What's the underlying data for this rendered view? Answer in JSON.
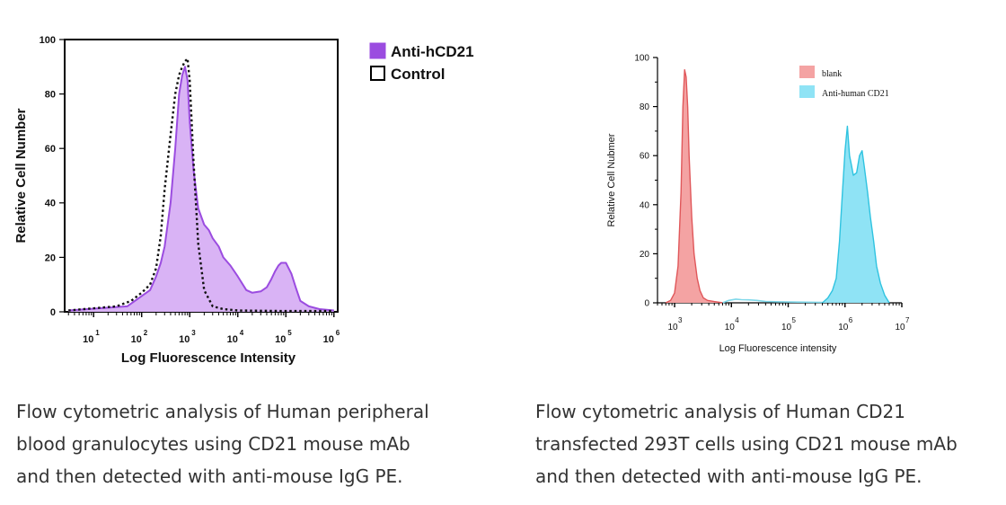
{
  "chart_data": [
    {
      "type": "area",
      "xscale": "log",
      "xlim": [
        2.5,
        1200000
      ],
      "ylim": [
        0,
        100
      ],
      "xlabel": "Log Fluorescence Intensity",
      "ylabel": "Relative Cell Number",
      "x_ticks": [
        {
          "base": "10",
          "exp": "1"
        },
        {
          "base": "10",
          "exp": "2"
        },
        {
          "base": "10",
          "exp": "3"
        },
        {
          "base": "10",
          "exp": "4"
        },
        {
          "base": "10",
          "exp": "5"
        },
        {
          "base": "10",
          "exp": "6"
        }
      ],
      "y_ticks": [
        "0",
        "20",
        "40",
        "60",
        "80",
        "100"
      ],
      "legend_position": "top-right-outside",
      "series": [
        {
          "name": "Anti-hCD21",
          "style": "filled",
          "fill": "#d9b3f5",
          "stroke": "#9b4ce0",
          "x": [
            3,
            50,
            150,
            200,
            250,
            300,
            400,
            500,
            600,
            700,
            800,
            900,
            1000,
            1200,
            1500,
            2000,
            2500,
            3000,
            4000,
            5000,
            7000,
            10000,
            15000,
            20000,
            30000,
            40000,
            50000,
            60000,
            70000,
            80000,
            100000,
            130000,
            160000,
            200000,
            300000,
            500000,
            1000000
          ],
          "y": [
            0.5,
            2,
            8,
            13,
            18,
            24,
            40,
            60,
            80,
            87,
            90,
            85,
            70,
            52,
            38,
            32,
            30,
            27,
            24,
            20,
            17,
            13,
            8,
            7,
            7.5,
            9,
            12,
            15,
            17,
            18,
            18,
            14,
            9,
            4,
            2,
            1,
            0.5
          ]
        },
        {
          "name": "Control",
          "style": "dotted",
          "stroke": "#111111",
          "x": [
            3,
            30,
            60,
            100,
            150,
            200,
            250,
            300,
            400,
            500,
            600,
            700,
            800,
            900,
            1000,
            1200,
            1500,
            2000,
            3000,
            5000,
            10000,
            100000,
            1000000
          ],
          "y": [
            0.5,
            2,
            4,
            7,
            10,
            16,
            28,
            45,
            65,
            80,
            87,
            90,
            92,
            93,
            85,
            55,
            25,
            8,
            2,
            1,
            0.5,
            0.3,
            0.3
          ]
        }
      ]
    },
    {
      "type": "area",
      "xscale": "log",
      "xlim": [
        500,
        10000000
      ],
      "ylim": [
        0,
        100
      ],
      "xlabel": "Log Fluorescence intensity",
      "ylabel": "Relative Cell Nubmer",
      "x_ticks": [
        {
          "base": "10",
          "exp": "3"
        },
        {
          "base": "10",
          "exp": "4"
        },
        {
          "base": "10",
          "exp": "5"
        },
        {
          "base": "10",
          "exp": "6"
        },
        {
          "base": "10",
          "exp": "7"
        }
      ],
      "y_ticks": [
        "0",
        "20",
        "40",
        "60",
        "80",
        "100"
      ],
      "legend_position": "top-right",
      "series": [
        {
          "name": "blank",
          "style": "filled",
          "fill": "#f4a3a3",
          "stroke": "#e0575a",
          "x": [
            700,
            850,
            1000,
            1150,
            1300,
            1400,
            1500,
            1600,
            1700,
            1800,
            2000,
            2200,
            2500,
            2800,
            3200,
            3800,
            5000,
            7000
          ],
          "y": [
            0,
            1,
            4,
            15,
            45,
            80,
            95,
            92,
            80,
            60,
            35,
            20,
            10,
            5,
            2,
            1,
            0.5,
            0
          ]
        },
        {
          "name": "",
          "style": "line",
          "stroke": "#7fd8ea",
          "x": [
            7000,
            9000,
            12000,
            15000,
            20000,
            28000,
            40000,
            70000,
            150000,
            400000
          ],
          "y": [
            0,
            1,
            1.5,
            1.3,
            1.2,
            1,
            0.5,
            0.4,
            0.3,
            0.2
          ]
        },
        {
          "name": "Anti-human CD21",
          "style": "filled",
          "fill": "#8fe3f5",
          "stroke": "#2fc3e0",
          "x": [
            400000,
            500000,
            600000,
            700000,
            800000,
            900000,
            1000000,
            1100000,
            1200000,
            1300000,
            1400000,
            1600000,
            1800000,
            2000000,
            2200000,
            2500000,
            2800000,
            3200000,
            3600000,
            4200000,
            5000000,
            6000000
          ],
          "y": [
            0,
            2,
            5,
            10,
            25,
            45,
            62,
            72,
            60,
            56,
            52,
            53,
            60,
            62,
            55,
            45,
            35,
            25,
            15,
            8,
            3,
            0
          ]
        }
      ]
    }
  ],
  "captions": {
    "left": [
      "Flow cytometric analysis of Human peripheral",
      "blood granulocytes using CD21 mouse mAb",
      "and then detected with anti-mouse IgG PE."
    ],
    "right": [
      "Flow cytometric analysis of Human CD21",
      "transfected 293T cells using CD21 mouse mAb",
      "and then detected with anti-mouse IgG PE."
    ]
  }
}
